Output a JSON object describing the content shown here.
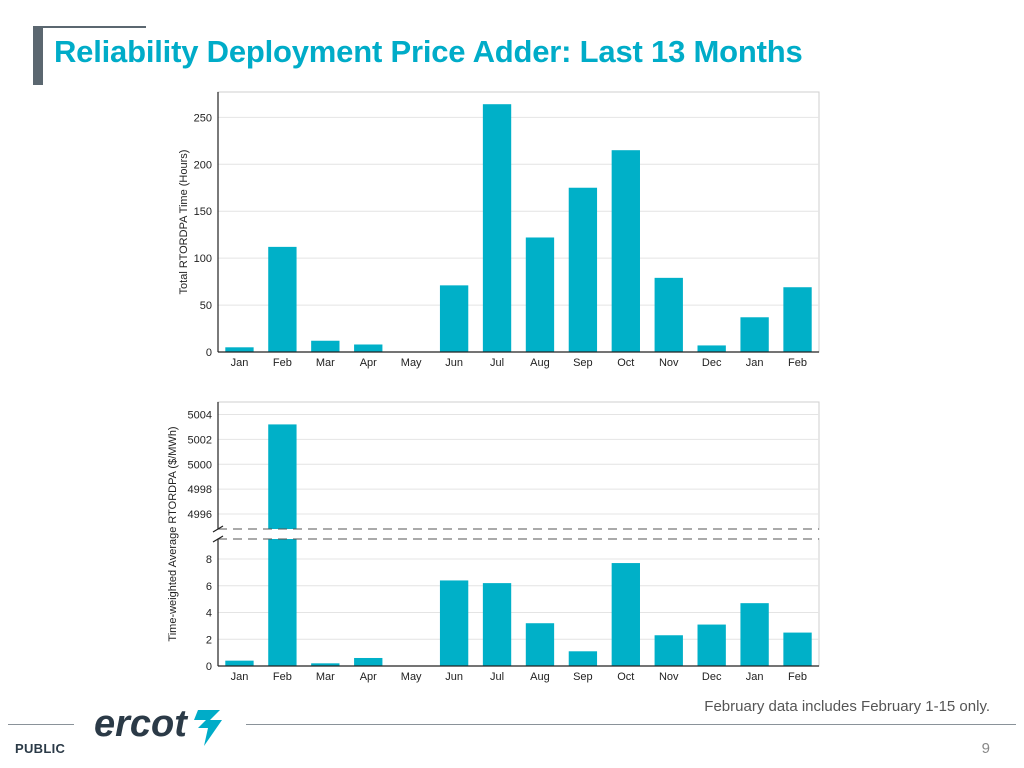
{
  "page": {
    "title": "Reliability Deployment Price Adder: Last 13 Months",
    "footnote": "February data includes February 1-15 only.",
    "classification": "PUBLIC",
    "page_number": "9",
    "logo_text": "ercot"
  },
  "colors": {
    "bar": "#00b0c8",
    "title": "#00acc8",
    "grid": "#e4e4e4",
    "axis": "#222222"
  },
  "chart_data": [
    {
      "type": "bar",
      "title": "",
      "xlabel": "",
      "ylabel": "Total RTORDPA Time (Hours)",
      "categories": [
        "Jan",
        "Feb",
        "Mar",
        "Apr",
        "May",
        "Jun",
        "Jul",
        "Aug",
        "Sep",
        "Oct",
        "Nov",
        "Dec",
        "Jan",
        "Feb"
      ],
      "values": [
        5,
        112,
        12,
        8,
        0,
        71,
        264,
        122,
        175,
        215,
        79,
        7,
        37,
        69
      ],
      "ylim": [
        0,
        277
      ],
      "yticks": [
        0,
        50,
        100,
        150,
        200,
        250
      ],
      "grid": true
    },
    {
      "type": "bar",
      "title": "",
      "xlabel": "",
      "ylabel": "Time-weighted Average RTORDPA ($/MWh)",
      "categories": [
        "Jan",
        "Feb",
        "Mar",
        "Apr",
        "May",
        "Jun",
        "Jul",
        "Aug",
        "Sep",
        "Oct",
        "Nov",
        "Dec",
        "Jan",
        "Feb"
      ],
      "values": [
        0.4,
        5003.2,
        0.2,
        0.6,
        0,
        6.4,
        6.2,
        3.2,
        1.1,
        7.7,
        2.3,
        3.1,
        4.7,
        2.5
      ],
      "axis_break": true,
      "lower_ylim": [
        0,
        9.5
      ],
      "lower_yticks": [
        0,
        2,
        4,
        6,
        8
      ],
      "upper_ylim": [
        4994.8,
        5005
      ],
      "upper_yticks": [
        4996,
        4998,
        5000,
        5002,
        5004
      ],
      "grid": true
    }
  ]
}
